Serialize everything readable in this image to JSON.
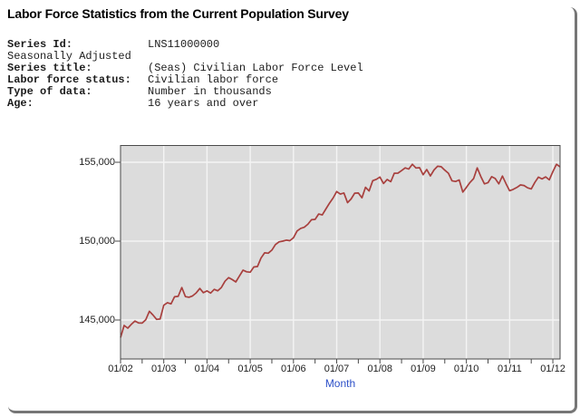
{
  "page": {
    "title": "Labor Force Statistics from the Current Population Survey"
  },
  "metadata": {
    "rows": [
      {
        "label": "Series Id:",
        "value": "LNS11000000",
        "bold": true
      },
      {
        "label": "Seasonally Adjusted",
        "value": "",
        "bold": false
      },
      {
        "label": "Series title:",
        "value": "(Seas) Civilian Labor Force Level",
        "bold": true
      },
      {
        "label": "Labor force status:",
        "value": "Civilian labor force",
        "bold": true
      },
      {
        "label": "Type of data:",
        "value": "Number in thousands",
        "bold": true
      },
      {
        "label": "Age:",
        "value": "16 years and over",
        "bold": true
      }
    ]
  },
  "chart_data": {
    "type": "line",
    "title": "",
    "xlabel": "Month",
    "ylabel": "",
    "x_frequency": "monthly",
    "x_start": "2002-01",
    "x_end": "2012-03",
    "x_tick_labels": [
      "01/02",
      "01/03",
      "01/04",
      "01/05",
      "01/06",
      "01/07",
      "01/08",
      "01/09",
      "01/10",
      "01/11",
      "01/12"
    ],
    "minor_x_ticks": "every 6 months",
    "y_ticks": [
      {
        "value": 145000,
        "label": "145,000"
      },
      {
        "value": 150000,
        "label": "150,000"
      },
      {
        "value": 155000,
        "label": "155,000"
      }
    ],
    "ylim": [
      142530,
      156090
    ],
    "grid": true,
    "legend": "none",
    "series": [
      {
        "name": "(Seas) Civilian Labor Force Level",
        "values": [
          143883,
          144653,
          144481,
          144725,
          144938,
          144808,
          144803,
          145009,
          145552,
          145314,
          145041,
          145066,
          145937,
          146100,
          146022,
          146474,
          146500,
          147056,
          146485,
          146445,
          146530,
          146716,
          147000,
          146729,
          146842,
          146709,
          146944,
          146850,
          147065,
          147460,
          147692,
          147564,
          147415,
          147793,
          148162,
          148059,
          148029,
          148364,
          148391,
          148926,
          149261,
          149238,
          149432,
          149779,
          149954,
          150001,
          150065,
          150030,
          150214,
          150641,
          150813,
          150881,
          151069,
          151354,
          151377,
          151716,
          151662,
          152041,
          152406,
          152732,
          153144,
          152983,
          153051,
          152435,
          152670,
          153041,
          153054,
          152749,
          153414,
          153183,
          153835,
          153918,
          154063,
          153653,
          153908,
          153769,
          154303,
          154313,
          154469,
          154641,
          154570,
          154876,
          154639,
          154655,
          154210,
          154538,
          154133,
          154509,
          154747,
          154716,
          154502,
          154307,
          153827,
          153784,
          153878,
          153111,
          153404,
          153720,
          153964,
          154642,
          154106,
          153631,
          153706,
          154087,
          153971,
          153631,
          154127,
          153639,
          153198,
          153280,
          153403,
          153566,
          153526,
          153379,
          153309,
          153724,
          154059,
          153940,
          154072,
          153884,
          154395,
          154871,
          154707
        ]
      }
    ],
    "colors": {
      "line": "#a8403e",
      "plot_background": "#dcdcdc",
      "gridline": "#f4f4f4",
      "plot_border": "#4a4a4a",
      "tick_label": "#1d1d1d",
      "xaxis_title": "#2d50c8"
    }
  }
}
